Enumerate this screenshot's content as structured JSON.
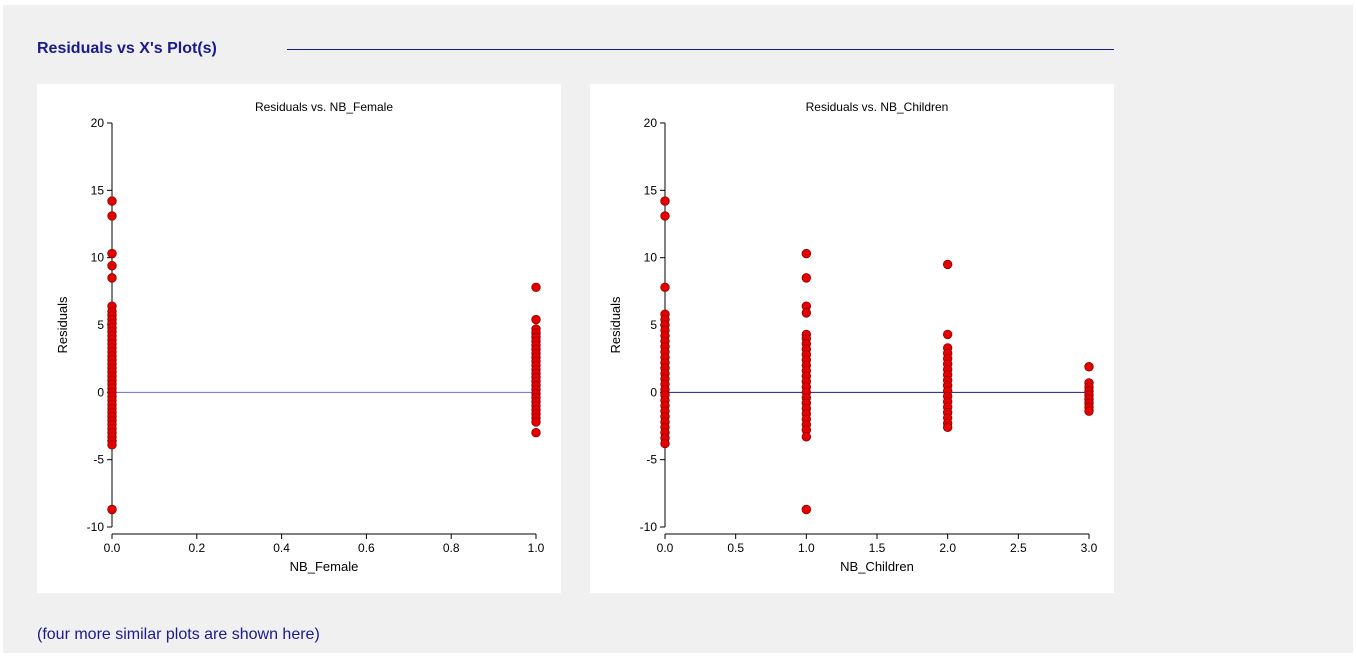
{
  "page": {
    "section_title": "Residuals vs X's Plot(s)",
    "footnote": "(four more similar plots are shown here)"
  },
  "colors": {
    "point_fill": "#e60000",
    "point_stroke": "#8c0000",
    "zero_line_0": "#6a6ad8",
    "zero_line_1": "#1a1a8c",
    "title_color": "#1a1a8c"
  },
  "chart_data": [
    {
      "type": "scatter",
      "title": "Residuals vs. NB_Female",
      "xlabel": "NB_Female",
      "ylabel": "Residuals",
      "xlim": [
        0,
        1
      ],
      "ylim": [
        -10,
        20
      ],
      "xticks": [
        0,
        0.2,
        0.4,
        0.6,
        0.8,
        1
      ],
      "xtick_labels": [
        "0.0",
        "0.2",
        "0.4",
        "0.6",
        "0.8",
        "1.0"
      ],
      "yticks": [
        -10,
        -5,
        0,
        5,
        10,
        15,
        20
      ],
      "ytick_labels": [
        "-10",
        "-5",
        "0",
        "5",
        "10",
        "15",
        "20"
      ],
      "reference_line_y": 0,
      "grid": false,
      "points": [
        {
          "x": 0,
          "y": 14.2
        },
        {
          "x": 0,
          "y": 13.1
        },
        {
          "x": 0,
          "y": 10.3
        },
        {
          "x": 0,
          "y": 9.4
        },
        {
          "x": 0,
          "y": 8.5
        },
        {
          "x": 0,
          "y": 6.4
        },
        {
          "x": 0,
          "y": 6.0
        },
        {
          "x": 0,
          "y": 5.7
        },
        {
          "x": 0,
          "y": 5.4
        },
        {
          "x": 0,
          "y": 5.1
        },
        {
          "x": 0,
          "y": 4.8
        },
        {
          "x": 0,
          "y": 4.5
        },
        {
          "x": 0,
          "y": 4.2
        },
        {
          "x": 0,
          "y": 3.9
        },
        {
          "x": 0,
          "y": 3.6
        },
        {
          "x": 0,
          "y": 3.3
        },
        {
          "x": 0,
          "y": 3.0
        },
        {
          "x": 0,
          "y": 2.7
        },
        {
          "x": 0,
          "y": 2.4
        },
        {
          "x": 0,
          "y": 2.1
        },
        {
          "x": 0,
          "y": 1.8
        },
        {
          "x": 0,
          "y": 1.5
        },
        {
          "x": 0,
          "y": 1.2
        },
        {
          "x": 0,
          "y": 0.9
        },
        {
          "x": 0,
          "y": 0.6
        },
        {
          "x": 0,
          "y": 0.3
        },
        {
          "x": 0,
          "y": 0.0
        },
        {
          "x": 0,
          "y": -0.3
        },
        {
          "x": 0,
          "y": -0.6
        },
        {
          "x": 0,
          "y": -0.9
        },
        {
          "x": 0,
          "y": -1.2
        },
        {
          "x": 0,
          "y": -1.5
        },
        {
          "x": 0,
          "y": -1.8
        },
        {
          "x": 0,
          "y": -2.1
        },
        {
          "x": 0,
          "y": -2.4
        },
        {
          "x": 0,
          "y": -2.7
        },
        {
          "x": 0,
          "y": -3.0
        },
        {
          "x": 0,
          "y": -3.3
        },
        {
          "x": 0,
          "y": -3.6
        },
        {
          "x": 0,
          "y": -3.9
        },
        {
          "x": 0,
          "y": -8.7
        },
        {
          "x": 1,
          "y": 7.8
        },
        {
          "x": 1,
          "y": 5.4
        },
        {
          "x": 1,
          "y": 4.7
        },
        {
          "x": 1,
          "y": 4.4
        },
        {
          "x": 1,
          "y": 4.1
        },
        {
          "x": 1,
          "y": 3.8
        },
        {
          "x": 1,
          "y": 3.5
        },
        {
          "x": 1,
          "y": 3.2
        },
        {
          "x": 1,
          "y": 2.9
        },
        {
          "x": 1,
          "y": 2.6
        },
        {
          "x": 1,
          "y": 2.3
        },
        {
          "x": 1,
          "y": 2.0
        },
        {
          "x": 1,
          "y": 1.7
        },
        {
          "x": 1,
          "y": 1.4
        },
        {
          "x": 1,
          "y": 1.1
        },
        {
          "x": 1,
          "y": 0.8
        },
        {
          "x": 1,
          "y": 0.5
        },
        {
          "x": 1,
          "y": 0.2
        },
        {
          "x": 1,
          "y": -0.1
        },
        {
          "x": 1,
          "y": -0.4
        },
        {
          "x": 1,
          "y": -0.7
        },
        {
          "x": 1,
          "y": -1.0
        },
        {
          "x": 1,
          "y": -1.3
        },
        {
          "x": 1,
          "y": -1.6
        },
        {
          "x": 1,
          "y": -1.9
        },
        {
          "x": 1,
          "y": -2.2
        },
        {
          "x": 1,
          "y": -3.0
        }
      ]
    },
    {
      "type": "scatter",
      "title": "Residuals vs. NB_Children",
      "xlabel": "NB_Children",
      "ylabel": "Residuals",
      "xlim": [
        0,
        3
      ],
      "ylim": [
        -10,
        20
      ],
      "xticks": [
        0,
        0.5,
        1,
        1.5,
        2,
        2.5,
        3
      ],
      "xtick_labels": [
        "0.0",
        "0.5",
        "1.0",
        "1.5",
        "2.0",
        "2.5",
        "3.0"
      ],
      "yticks": [
        -10,
        -5,
        0,
        5,
        10,
        15,
        20
      ],
      "ytick_labels": [
        "-10",
        "-5",
        "0",
        "5",
        "10",
        "15",
        "20"
      ],
      "reference_line_y": 0,
      "grid": false,
      "points": [
        {
          "x": 0,
          "y": 14.2
        },
        {
          "x": 0,
          "y": 13.1
        },
        {
          "x": 0,
          "y": 7.8
        },
        {
          "x": 0,
          "y": 5.8
        },
        {
          "x": 0,
          "y": 5.4
        },
        {
          "x": 0,
          "y": 5.0
        },
        {
          "x": 0,
          "y": 4.6
        },
        {
          "x": 0,
          "y": 4.2
        },
        {
          "x": 0,
          "y": 3.8
        },
        {
          "x": 0,
          "y": 3.4
        },
        {
          "x": 0,
          "y": 3.0
        },
        {
          "x": 0,
          "y": 2.6
        },
        {
          "x": 0,
          "y": 2.2
        },
        {
          "x": 0,
          "y": 1.8
        },
        {
          "x": 0,
          "y": 1.4
        },
        {
          "x": 0,
          "y": 1.0
        },
        {
          "x": 0,
          "y": 0.6
        },
        {
          "x": 0,
          "y": 0.2
        },
        {
          "x": 0,
          "y": -0.2
        },
        {
          "x": 0,
          "y": -0.6
        },
        {
          "x": 0,
          "y": -1.0
        },
        {
          "x": 0,
          "y": -1.4
        },
        {
          "x": 0,
          "y": -1.8
        },
        {
          "x": 0,
          "y": -2.2
        },
        {
          "x": 0,
          "y": -2.6
        },
        {
          "x": 0,
          "y": -3.0
        },
        {
          "x": 0,
          "y": -3.4
        },
        {
          "x": 0,
          "y": -3.8
        },
        {
          "x": 1,
          "y": 10.3
        },
        {
          "x": 1,
          "y": 8.5
        },
        {
          "x": 1,
          "y": 6.4
        },
        {
          "x": 1,
          "y": 5.9
        },
        {
          "x": 1,
          "y": 4.3
        },
        {
          "x": 1,
          "y": 4.0
        },
        {
          "x": 1,
          "y": 3.6
        },
        {
          "x": 1,
          "y": 3.2
        },
        {
          "x": 1,
          "y": 2.8
        },
        {
          "x": 1,
          "y": 2.4
        },
        {
          "x": 1,
          "y": 2.0
        },
        {
          "x": 1,
          "y": 1.6
        },
        {
          "x": 1,
          "y": 1.2
        },
        {
          "x": 1,
          "y": 0.8
        },
        {
          "x": 1,
          "y": 0.4
        },
        {
          "x": 1,
          "y": 0.0
        },
        {
          "x": 1,
          "y": -0.4
        },
        {
          "x": 1,
          "y": -0.8
        },
        {
          "x": 1,
          "y": -1.2
        },
        {
          "x": 1,
          "y": -1.6
        },
        {
          "x": 1,
          "y": -2.0
        },
        {
          "x": 1,
          "y": -2.4
        },
        {
          "x": 1,
          "y": -2.8
        },
        {
          "x": 1,
          "y": -3.3
        },
        {
          "x": 1,
          "y": -8.7
        },
        {
          "x": 2,
          "y": 9.5
        },
        {
          "x": 2,
          "y": 4.3
        },
        {
          "x": 2,
          "y": 3.3
        },
        {
          "x": 2,
          "y": 2.9
        },
        {
          "x": 2,
          "y": 2.5
        },
        {
          "x": 2,
          "y": 2.1
        },
        {
          "x": 2,
          "y": 1.7
        },
        {
          "x": 2,
          "y": 1.3
        },
        {
          "x": 2,
          "y": 0.9
        },
        {
          "x": 2,
          "y": 0.5
        },
        {
          "x": 2,
          "y": 0.1
        },
        {
          "x": 2,
          "y": -0.3
        },
        {
          "x": 2,
          "y": -0.7
        },
        {
          "x": 2,
          "y": -1.1
        },
        {
          "x": 2,
          "y": -1.5
        },
        {
          "x": 2,
          "y": -1.9
        },
        {
          "x": 2,
          "y": -2.3
        },
        {
          "x": 2,
          "y": -2.6
        },
        {
          "x": 3,
          "y": 1.9
        },
        {
          "x": 3,
          "y": 0.7
        },
        {
          "x": 3,
          "y": 0.4
        },
        {
          "x": 3,
          "y": 0.1
        },
        {
          "x": 3,
          "y": -0.2
        },
        {
          "x": 3,
          "y": -0.5
        },
        {
          "x": 3,
          "y": -0.8
        },
        {
          "x": 3,
          "y": -1.1
        },
        {
          "x": 3,
          "y": -1.4
        }
      ]
    }
  ]
}
